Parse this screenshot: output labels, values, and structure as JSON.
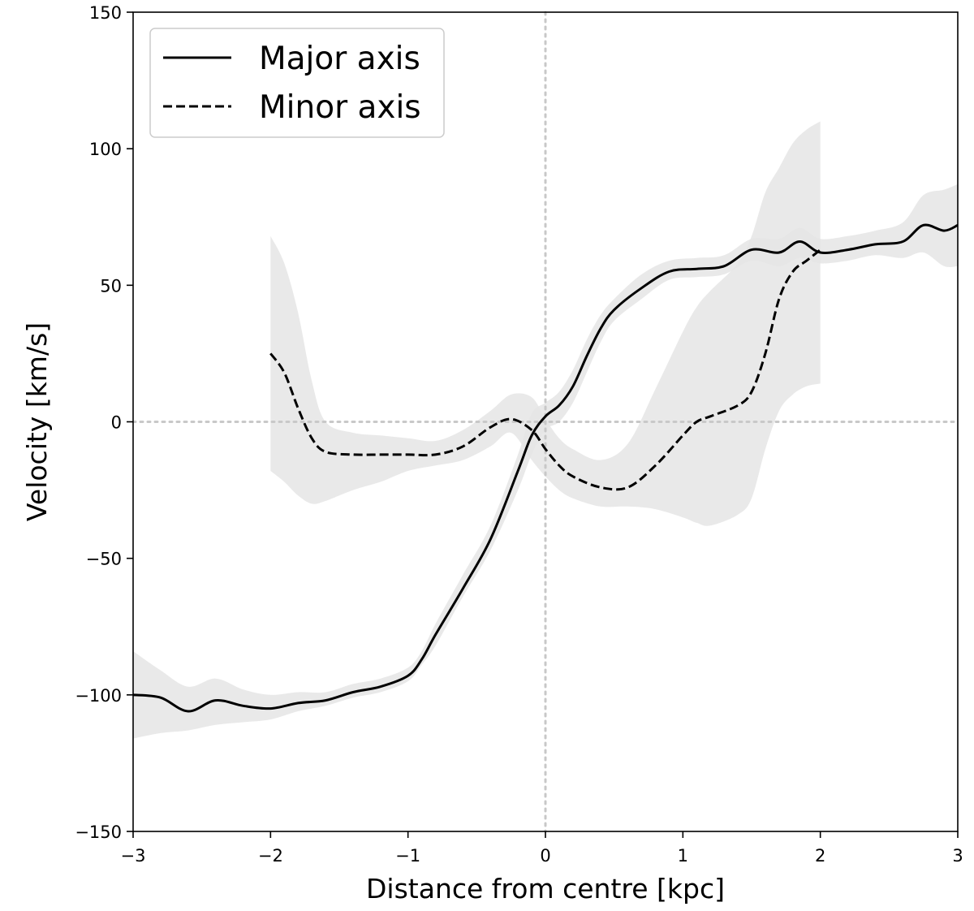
{
  "chart_data": {
    "type": "line",
    "xlabel": "Distance from centre [kpc]",
    "ylabel": "Velocity [km/s]",
    "xlim": [
      -3,
      3
    ],
    "ylim": [
      -150,
      150
    ],
    "xticks": [
      -3,
      -2,
      -1,
      0,
      1,
      2,
      3
    ],
    "yticks": [
      -150,
      -100,
      -50,
      0,
      50,
      100,
      150
    ],
    "xtick_labels": [
      "−3",
      "−2",
      "−1",
      "0",
      "1",
      "2",
      "3"
    ],
    "ytick_labels": [
      "−150",
      "−100",
      "−50",
      "0",
      "50",
      "100",
      "150"
    ],
    "grid": false,
    "reference_lines": {
      "x": 0,
      "y": 0,
      "style": "dotted",
      "color": "#c8c8c8"
    },
    "legend": {
      "placement": "top-left",
      "entries": [
        "Major axis",
        "Minor axis"
      ]
    },
    "colors": {
      "line": "#000000",
      "band": "#e5e5e5",
      "refline": "#c8c8c8"
    },
    "series": [
      {
        "name": "Major axis",
        "linestyle": "solid",
        "x": [
          -3.0,
          -2.8,
          -2.6,
          -2.4,
          -2.2,
          -2.0,
          -1.8,
          -1.6,
          -1.4,
          -1.2,
          -1.0,
          -0.9,
          -0.8,
          -0.6,
          -0.4,
          -0.2,
          -0.1,
          0.0,
          0.1,
          0.2,
          0.3,
          0.4,
          0.5,
          0.7,
          0.9,
          1.1,
          1.3,
          1.5,
          1.7,
          1.85,
          2.0,
          2.2,
          2.4,
          2.6,
          2.75,
          2.9,
          3.0
        ],
        "y": [
          -100,
          -101,
          -106,
          -102,
          -104,
          -105,
          -103,
          -102,
          -99,
          -97,
          -93,
          -87,
          -78,
          -61,
          -43,
          -18,
          -5,
          2,
          6,
          13,
          24,
          34,
          41,
          49,
          55,
          56,
          57,
          63,
          62,
          66,
          62,
          63,
          65,
          66,
          72,
          70,
          72
        ],
        "band_lower": [
          -116,
          -114,
          -113,
          -111,
          -110,
          -109,
          -106,
          -104,
          -101,
          -99,
          -95,
          -89,
          -82,
          -64,
          -47,
          -25,
          -12,
          -3,
          0,
          7,
          18,
          29,
          37,
          45,
          52,
          53,
          54,
          59,
          57,
          60,
          58,
          59,
          61,
          60,
          62,
          57,
          57
        ],
        "band_upper": [
          -84,
          -91,
          -97,
          -94,
          -98,
          -100,
          -99,
          -99,
          -96,
          -94,
          -90,
          -84,
          -74,
          -56,
          -38,
          -12,
          3,
          7,
          11,
          19,
          30,
          39,
          45,
          54,
          59,
          60,
          61,
          67,
          67,
          71,
          67,
          68,
          70,
          73,
          83,
          85,
          87
        ]
      },
      {
        "name": "Minor axis",
        "linestyle": "dashed",
        "x": [
          -2.0,
          -1.9,
          -1.8,
          -1.7,
          -1.6,
          -1.4,
          -1.2,
          -1.0,
          -0.8,
          -0.6,
          -0.4,
          -0.25,
          -0.1,
          0.0,
          0.1,
          0.2,
          0.4,
          0.6,
          0.8,
          1.0,
          1.1,
          1.2,
          1.4,
          1.5,
          1.6,
          1.7,
          1.8,
          1.9,
          2.0
        ],
        "y": [
          25,
          18,
          5,
          -6,
          -11,
          -12,
          -12,
          -12,
          -12,
          -9,
          -2,
          1,
          -3,
          -10,
          -16,
          -20,
          -24,
          -24,
          -16,
          -5,
          0,
          2,
          6,
          11,
          25,
          45,
          55,
          59,
          63
        ],
        "band_lower": [
          -18,
          -22,
          -27,
          -30,
          -29,
          -25,
          -22,
          -18,
          -16,
          -14,
          -9,
          -4,
          -14,
          -20,
          -25,
          -28,
          -31,
          -31,
          -32,
          -35,
          -37,
          -38,
          -34,
          -28,
          -10,
          4,
          10,
          13,
          14
        ],
        "band_upper": [
          68,
          58,
          40,
          15,
          0,
          -4,
          -5,
          -6,
          -7,
          -3,
          4,
          10,
          9,
          1,
          -6,
          -10,
          -14,
          -8,
          12,
          33,
          42,
          48,
          58,
          68,
          84,
          93,
          102,
          107,
          110
        ]
      }
    ]
  }
}
